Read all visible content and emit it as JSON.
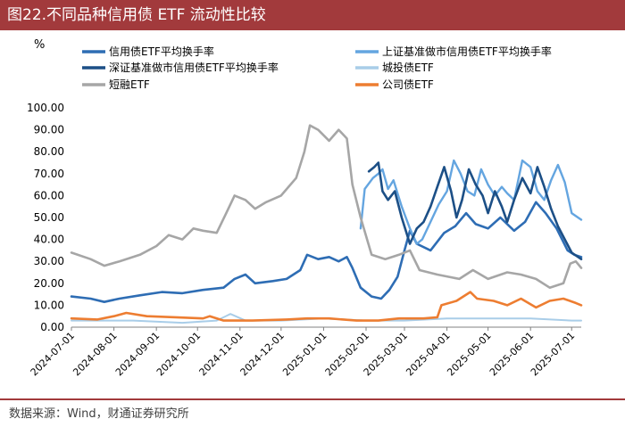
{
  "header": {
    "title": "图22.不同品种信用债 ETF 流动性比较"
  },
  "footer": {
    "source": "数据来源：Wind，财通证券研究所"
  },
  "chart_data": {
    "type": "line",
    "title": "不同品种信用债 ETF 流动性比较",
    "unit_label": "%",
    "ylim": [
      0,
      100
    ],
    "yticks": [
      "0.00",
      "10.00",
      "20.00",
      "30.00",
      "40.00",
      "50.00",
      "60.00",
      "70.00",
      "80.00",
      "90.00",
      "100.00"
    ],
    "x_start": "2024-07-01",
    "x_end": "2025-07-08",
    "xticks": [
      "2024-07-01",
      "2024-08-01",
      "2024-09-01",
      "2024-10-01",
      "2024-11-01",
      "2024-12-01",
      "2025-01-01",
      "2025-02-01",
      "2025-03-01",
      "2025-04-01",
      "2025-05-01",
      "2025-06-01",
      "2025-07-01"
    ],
    "legend_position": "top",
    "series": [
      {
        "name": "信用债ETF平均换手率",
        "color": "#2e6db4",
        "width": 2.6,
        "points": [
          [
            "2024-07-01",
            14
          ],
          [
            "2024-07-15",
            13
          ],
          [
            "2024-07-25",
            11.5
          ],
          [
            "2024-08-05",
            13
          ],
          [
            "2024-08-20",
            14.5
          ],
          [
            "2024-09-05",
            16
          ],
          [
            "2024-09-20",
            15.5
          ],
          [
            "2024-10-05",
            17
          ],
          [
            "2024-10-20",
            18
          ],
          [
            "2024-10-28",
            22
          ],
          [
            "2024-11-05",
            24
          ],
          [
            "2024-11-12",
            20
          ],
          [
            "2024-11-25",
            21
          ],
          [
            "2024-12-05",
            22
          ],
          [
            "2024-12-15",
            26
          ],
          [
            "2024-12-20",
            33
          ],
          [
            "2024-12-28",
            31
          ],
          [
            "2025-01-05",
            32
          ],
          [
            "2025-01-12",
            30
          ],
          [
            "2025-01-18",
            32
          ],
          [
            "2025-01-22",
            27
          ],
          [
            "2025-01-28",
            18
          ],
          [
            "2025-02-05",
            14
          ],
          [
            "2025-02-12",
            13
          ],
          [
            "2025-02-18",
            17
          ],
          [
            "2025-02-24",
            23
          ],
          [
            "2025-03-01",
            35
          ],
          [
            "2025-03-05",
            44
          ],
          [
            "2025-03-10",
            38
          ],
          [
            "2025-03-20",
            35
          ],
          [
            "2025-03-30",
            43
          ],
          [
            "2025-04-07",
            46
          ],
          [
            "2025-04-15",
            52
          ],
          [
            "2025-04-22",
            47
          ],
          [
            "2025-05-01",
            45
          ],
          [
            "2025-05-10",
            50
          ],
          [
            "2025-05-20",
            44
          ],
          [
            "2025-05-28",
            48
          ],
          [
            "2025-06-05",
            57
          ],
          [
            "2025-06-12",
            52
          ],
          [
            "2025-06-20",
            45
          ],
          [
            "2025-06-28",
            35
          ],
          [
            "2025-07-03",
            33
          ],
          [
            "2025-07-08",
            32
          ]
        ]
      },
      {
        "name": "上证基准做市信用债ETF平均换手率",
        "color": "#64a5e0",
        "width": 2.4,
        "points": [
          [
            "2025-01-28",
            45
          ],
          [
            "2025-01-31",
            63
          ],
          [
            "2025-02-06",
            68
          ],
          [
            "2025-02-10",
            70
          ],
          [
            "2025-02-13",
            72
          ],
          [
            "2025-02-17",
            63
          ],
          [
            "2025-02-21",
            67
          ],
          [
            "2025-02-27",
            55
          ],
          [
            "2025-03-05",
            45
          ],
          [
            "2025-03-10",
            38
          ],
          [
            "2025-03-14",
            40
          ],
          [
            "2025-03-20",
            48
          ],
          [
            "2025-03-26",
            56
          ],
          [
            "2025-04-01",
            62
          ],
          [
            "2025-04-06",
            76
          ],
          [
            "2025-04-11",
            70
          ],
          [
            "2025-04-16",
            62
          ],
          [
            "2025-04-21",
            60
          ],
          [
            "2025-04-26",
            72
          ],
          [
            "2025-05-01",
            65
          ],
          [
            "2025-05-06",
            60
          ],
          [
            "2025-05-11",
            64
          ],
          [
            "2025-05-15",
            61
          ],
          [
            "2025-05-20",
            58
          ],
          [
            "2025-05-26",
            76
          ],
          [
            "2025-06-01",
            73
          ],
          [
            "2025-06-06",
            62
          ],
          [
            "2025-06-11",
            58
          ],
          [
            "2025-06-16",
            67
          ],
          [
            "2025-06-21",
            74
          ],
          [
            "2025-06-26",
            66
          ],
          [
            "2025-07-01",
            52
          ],
          [
            "2025-07-08",
            49
          ]
        ]
      },
      {
        "name": "深证基准做市信用债ETF平均换手率",
        "color": "#1c4f86",
        "width": 2.6,
        "points": [
          [
            "2025-02-03",
            71
          ],
          [
            "2025-02-07",
            73
          ],
          [
            "2025-02-10",
            75
          ],
          [
            "2025-02-13",
            62
          ],
          [
            "2025-02-17",
            58
          ],
          [
            "2025-02-22",
            62
          ],
          [
            "2025-02-27",
            50
          ],
          [
            "2025-03-05",
            38
          ],
          [
            "2025-03-10",
            45
          ],
          [
            "2025-03-15",
            48
          ],
          [
            "2025-03-20",
            55
          ],
          [
            "2025-03-25",
            64
          ],
          [
            "2025-03-30",
            73
          ],
          [
            "2025-04-04",
            62
          ],
          [
            "2025-04-08",
            50
          ],
          [
            "2025-04-12",
            58
          ],
          [
            "2025-04-17",
            72
          ],
          [
            "2025-04-22",
            65
          ],
          [
            "2025-04-27",
            60
          ],
          [
            "2025-05-01",
            52
          ],
          [
            "2025-05-06",
            62
          ],
          [
            "2025-05-11",
            55
          ],
          [
            "2025-05-15",
            48
          ],
          [
            "2025-05-20",
            58
          ],
          [
            "2025-05-26",
            68
          ],
          [
            "2025-06-01",
            61
          ],
          [
            "2025-06-06",
            73
          ],
          [
            "2025-06-11",
            64
          ],
          [
            "2025-06-16",
            54
          ],
          [
            "2025-06-21",
            46
          ],
          [
            "2025-06-26",
            40
          ],
          [
            "2025-07-01",
            34
          ],
          [
            "2025-07-08",
            31
          ]
        ]
      },
      {
        "name": "城投债ETF",
        "color": "#a9cde8",
        "width": 2.0,
        "points": [
          [
            "2024-07-01",
            3
          ],
          [
            "2024-08-15",
            3
          ],
          [
            "2024-09-20",
            2
          ],
          [
            "2024-10-15",
            3
          ],
          [
            "2024-10-25",
            6
          ],
          [
            "2024-11-05",
            3
          ],
          [
            "2024-12-01",
            3
          ],
          [
            "2025-01-01",
            4
          ],
          [
            "2025-02-01",
            3
          ],
          [
            "2025-03-01",
            3
          ],
          [
            "2025-04-01",
            4
          ],
          [
            "2025-05-01",
            4
          ],
          [
            "2025-06-01",
            4
          ],
          [
            "2025-07-01",
            3
          ],
          [
            "2025-07-08",
            3
          ]
        ]
      },
      {
        "name": "短融ETF",
        "color": "#a6a6a6",
        "width": 2.6,
        "points": [
          [
            "2024-07-01",
            34
          ],
          [
            "2024-07-15",
            31
          ],
          [
            "2024-07-25",
            28
          ],
          [
            "2024-08-05",
            30
          ],
          [
            "2024-08-20",
            33
          ],
          [
            "2024-09-01",
            37
          ],
          [
            "2024-09-10",
            42
          ],
          [
            "2024-09-20",
            40
          ],
          [
            "2024-09-28",
            45
          ],
          [
            "2024-10-05",
            44
          ],
          [
            "2024-10-15",
            43
          ],
          [
            "2024-10-22",
            52
          ],
          [
            "2024-10-28",
            60
          ],
          [
            "2024-11-05",
            58
          ],
          [
            "2024-11-12",
            54
          ],
          [
            "2024-11-20",
            57
          ],
          [
            "2024-12-01",
            60
          ],
          [
            "2024-12-12",
            68
          ],
          [
            "2024-12-18",
            80
          ],
          [
            "2024-12-22",
            92
          ],
          [
            "2024-12-28",
            90
          ],
          [
            "2025-01-05",
            85
          ],
          [
            "2025-01-12",
            90
          ],
          [
            "2025-01-18",
            86
          ],
          [
            "2025-01-22",
            65
          ],
          [
            "2025-01-28",
            50
          ],
          [
            "2025-02-05",
            33
          ],
          [
            "2025-02-15",
            31
          ],
          [
            "2025-02-25",
            33
          ],
          [
            "2025-03-05",
            35
          ],
          [
            "2025-03-12",
            26
          ],
          [
            "2025-03-25",
            24
          ],
          [
            "2025-04-10",
            22
          ],
          [
            "2025-04-20",
            26
          ],
          [
            "2025-05-01",
            22
          ],
          [
            "2025-05-15",
            25
          ],
          [
            "2025-05-25",
            24
          ],
          [
            "2025-06-05",
            22
          ],
          [
            "2025-06-15",
            18
          ],
          [
            "2025-06-25",
            20
          ],
          [
            "2025-06-30",
            29
          ],
          [
            "2025-07-04",
            30
          ],
          [
            "2025-07-08",
            27
          ]
        ]
      },
      {
        "name": "公司债ETF",
        "color": "#ed7d31",
        "width": 2.6,
        "points": [
          [
            "2024-07-01",
            4
          ],
          [
            "2024-07-20",
            3.5
          ],
          [
            "2024-08-01",
            5
          ],
          [
            "2024-08-10",
            6.5
          ],
          [
            "2024-08-25",
            5
          ],
          [
            "2024-09-15",
            4.5
          ],
          [
            "2024-10-05",
            4
          ],
          [
            "2024-10-10",
            5
          ],
          [
            "2024-10-20",
            3
          ],
          [
            "2024-11-10",
            3
          ],
          [
            "2024-12-05",
            3.5
          ],
          [
            "2024-12-20",
            4
          ],
          [
            "2025-01-05",
            4
          ],
          [
            "2025-01-25",
            3
          ],
          [
            "2025-02-10",
            3
          ],
          [
            "2025-02-25",
            4
          ],
          [
            "2025-03-15",
            4
          ],
          [
            "2025-03-25",
            4.5
          ],
          [
            "2025-03-28",
            10
          ],
          [
            "2025-04-08",
            12
          ],
          [
            "2025-04-18",
            16
          ],
          [
            "2025-04-23",
            13
          ],
          [
            "2025-05-05",
            12
          ],
          [
            "2025-05-15",
            10
          ],
          [
            "2025-05-25",
            13
          ],
          [
            "2025-06-05",
            9
          ],
          [
            "2025-06-15",
            12
          ],
          [
            "2025-06-25",
            13
          ],
          [
            "2025-07-04",
            11
          ],
          [
            "2025-07-08",
            10
          ]
        ]
      }
    ]
  }
}
